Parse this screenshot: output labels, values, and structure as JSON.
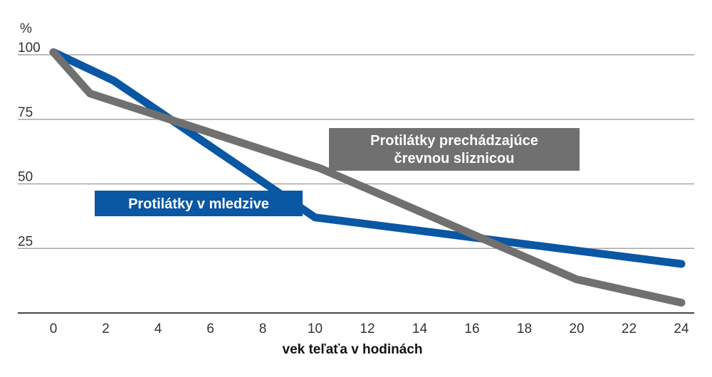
{
  "chart_data": {
    "type": "line",
    "xlabel": "vek teľaťa v hodinách",
    "ylabel": "%",
    "x_ticks": [
      0,
      2,
      4,
      6,
      8,
      10,
      12,
      14,
      16,
      18,
      20,
      22,
      24
    ],
    "y_ticks": [
      25,
      50,
      75,
      100
    ],
    "xlim": [
      0,
      24
    ],
    "ylim": [
      0,
      100
    ],
    "grid": true,
    "series": [
      {
        "name": "Protilátky v mledzive",
        "color": "#0a57a4",
        "x": [
          0,
          2.3,
          10,
          24
        ],
        "y": [
          101,
          90,
          37,
          19
        ]
      },
      {
        "name": "Protilátky prechádzajúce črevnou sliznicou",
        "name_lines": [
          "Protilátky prechádzajúce",
          "črevnou sliznicou"
        ],
        "color": "#707070",
        "x": [
          0,
          1.4,
          10.2,
          20,
          24
        ],
        "y": [
          101,
          85,
          56,
          13,
          4
        ]
      }
    ]
  }
}
